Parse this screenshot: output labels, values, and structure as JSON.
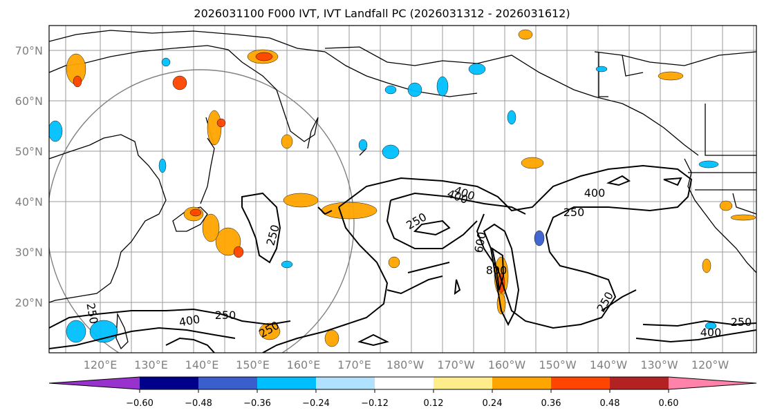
{
  "title": "2026031100 F000 IVT, IVT Landfall PC (2026031312 - 2026031612)",
  "map": {
    "lat_labels": [
      "70°N",
      "60°N",
      "50°N",
      "40°N",
      "30°N",
      "20°N"
    ],
    "lon_labels": [
      "120°E",
      "130°E",
      "140°E",
      "150°E",
      "160°E",
      "170°E",
      "180°W",
      "170°W",
      "160°W",
      "150°W",
      "140°W",
      "130°W",
      "120°W"
    ],
    "ivt_contour_levels": [
      "250",
      "400",
      "600",
      "800"
    ]
  },
  "colorbar": {
    "ticks": [
      "−0.60",
      "−0.48",
      "−0.36",
      "−0.24",
      "−0.12",
      "0.12",
      "0.24",
      "0.36",
      "0.48",
      "0.60"
    ],
    "colors": [
      "#9932cc",
      "#00008b",
      "#3a5fcd",
      "#00bfff",
      "#b0e2ff",
      "#ffffff",
      "#ffec8b",
      "#ffa500",
      "#ff4500",
      "#b22222",
      "#ff82ab"
    ]
  },
  "contour_labels": [
    {
      "text": "400"
    },
    {
      "text": "250"
    },
    {
      "text": "400"
    },
    {
      "text": "250"
    },
    {
      "text": "250"
    },
    {
      "text": "600"
    },
    {
      "text": "800"
    },
    {
      "text": "250"
    },
    {
      "text": "250"
    },
    {
      "text": "400"
    },
    {
      "text": "250"
    },
    {
      "text": "250"
    },
    {
      "text": "400"
    },
    {
      "text": "400"
    },
    {
      "text": "250"
    }
  ]
}
